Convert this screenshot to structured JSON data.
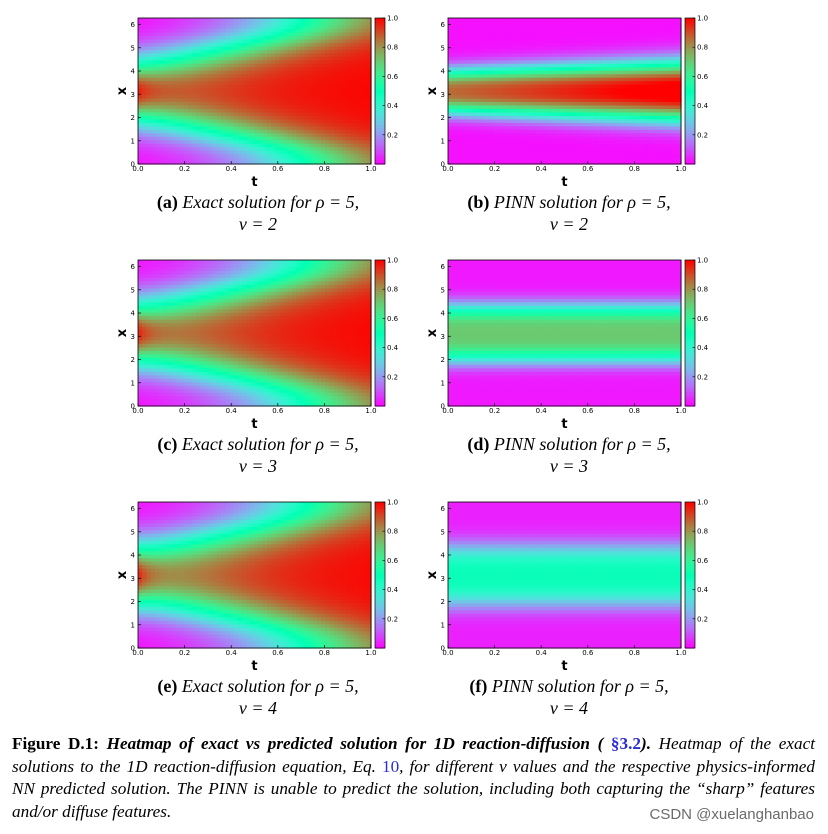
{
  "chart_data": [
    {
      "type": "heatmap",
      "panel_label": "(a)",
      "caption": "Exact solution for ρ = 5, ν = 2",
      "solution": "exact",
      "rho": 5,
      "nu": 2,
      "xlabel": "t",
      "ylabel": "x",
      "xlim": [
        0.0,
        1.0
      ],
      "ylim": [
        0,
        6.28
      ],
      "xticks": [
        "0.0",
        "0.2",
        "0.4",
        "0.6",
        "0.8",
        "1.0"
      ],
      "yticks": [
        "0",
        "1",
        "2",
        "3",
        "4",
        "5",
        "6"
      ],
      "colorbar": {
        "range": [
          0.0,
          1.0
        ],
        "ticks": [
          "0.2",
          "0.4",
          "0.6",
          "0.8",
          "1.0"
        ],
        "colormap": "rainbow"
      }
    },
    {
      "type": "heatmap",
      "panel_label": "(b)",
      "caption": "PINN solution for ρ = 5, ν = 2",
      "solution": "pinn",
      "rho": 5,
      "nu": 2,
      "xlabel": "t",
      "ylabel": "x",
      "xlim": [
        0.0,
        1.0
      ],
      "ylim": [
        0,
        6.28
      ],
      "xticks": [
        "0.0",
        "0.2",
        "0.4",
        "0.6",
        "0.8",
        "1.0"
      ],
      "yticks": [
        "0",
        "1",
        "2",
        "3",
        "4",
        "5",
        "6"
      ],
      "colorbar": {
        "range": [
          0.0,
          1.0
        ],
        "ticks": [
          "0.2",
          "0.4",
          "0.6",
          "0.8",
          "1.0"
        ],
        "colormap": "rainbow"
      }
    },
    {
      "type": "heatmap",
      "panel_label": "(c)",
      "caption": "Exact solution for ρ = 5, ν = 3",
      "solution": "exact",
      "rho": 5,
      "nu": 3,
      "xlabel": "t",
      "ylabel": "x",
      "xlim": [
        0.0,
        1.0
      ],
      "ylim": [
        0,
        6.28
      ],
      "xticks": [
        "0.0",
        "0.2",
        "0.4",
        "0.6",
        "0.8",
        "1.0"
      ],
      "yticks": [
        "0",
        "1",
        "2",
        "3",
        "4",
        "5",
        "6"
      ],
      "colorbar": {
        "range": [
          0.0,
          1.0
        ],
        "ticks": [
          "0.2",
          "0.4",
          "0.6",
          "0.8",
          "1.0"
        ],
        "colormap": "rainbow"
      }
    },
    {
      "type": "heatmap",
      "panel_label": "(d)",
      "caption": "PINN solution for ρ = 5, ν = 3",
      "solution": "pinn",
      "rho": 5,
      "nu": 3,
      "xlabel": "t",
      "ylabel": "x",
      "xlim": [
        0.0,
        1.0
      ],
      "ylim": [
        0,
        6.28
      ],
      "xticks": [
        "0.0",
        "0.2",
        "0.4",
        "0.6",
        "0.8",
        "1.0"
      ],
      "yticks": [
        "0",
        "1",
        "2",
        "3",
        "4",
        "5",
        "6"
      ],
      "colorbar": {
        "range": [
          0.0,
          1.0
        ],
        "ticks": [
          "0.2",
          "0.4",
          "0.6",
          "0.8",
          "1.0"
        ],
        "colormap": "rainbow"
      }
    },
    {
      "type": "heatmap",
      "panel_label": "(e)",
      "caption": "Exact solution for ρ = 5, ν = 4",
      "solution": "exact",
      "rho": 5,
      "nu": 4,
      "xlabel": "t",
      "ylabel": "x",
      "xlim": [
        0.0,
        1.0
      ],
      "ylim": [
        0,
        6.28
      ],
      "xticks": [
        "0.0",
        "0.2",
        "0.4",
        "0.6",
        "0.8",
        "1.0"
      ],
      "yticks": [
        "0",
        "1",
        "2",
        "3",
        "4",
        "5",
        "6"
      ],
      "colorbar": {
        "range": [
          0.0,
          1.0
        ],
        "ticks": [
          "0.2",
          "0.4",
          "0.6",
          "0.8",
          "1.0"
        ],
        "colormap": "rainbow"
      }
    },
    {
      "type": "heatmap",
      "panel_label": "(f)",
      "caption": "PINN solution for ρ = 5, ν = 4",
      "solution": "pinn",
      "rho": 5,
      "nu": 4,
      "xlabel": "t",
      "ylabel": "x",
      "xlim": [
        0.0,
        1.0
      ],
      "ylim": [
        0,
        6.28
      ],
      "xticks": [
        "0.0",
        "0.2",
        "0.4",
        "0.6",
        "0.8",
        "1.0"
      ],
      "yticks": [
        "0",
        "1",
        "2",
        "3",
        "4",
        "5",
        "6"
      ],
      "colorbar": {
        "range": [
          0.0,
          1.0
        ],
        "ticks": [
          "0.2",
          "0.4",
          "0.6",
          "0.8",
          "1.0"
        ],
        "colormap": "rainbow"
      }
    }
  ],
  "captions": [
    {
      "label": "(a)",
      "kind": "Exact solution",
      "line1_math": "for ρ = 5,",
      "line2_math": "ν = 2"
    },
    {
      "label": "(b)",
      "kind": "PINN solution",
      "line1_math": "for ρ = 5,",
      "line2_math": "ν = 2"
    },
    {
      "label": "(c)",
      "kind": "Exact solution",
      "line1_math": "for ρ = 5,",
      "line2_math": "ν = 3"
    },
    {
      "label": "(d)",
      "kind": "PINN solution",
      "line1_math": "for ρ = 5,",
      "line2_math": "ν = 3"
    },
    {
      "label": "(e)",
      "kind": "Exact solution",
      "line1_math": "for ρ = 5,",
      "line2_math": "ν = 4"
    },
    {
      "label": "(f)",
      "kind": "PINN solution",
      "line1_math": "for ρ = 5,",
      "line2_math": "ν = 4"
    }
  ],
  "figure_caption": {
    "label": "Figure D.1:",
    "title": "Heatmap of exact vs predicted solution for 1D reaction-diffusion ( ",
    "section_ref": "§3.2",
    "title_end": ").",
    "body_1": " Heatmap of the exact solutions to the 1D reaction-diffusion equation,  Eq. ",
    "eq_ref": "10",
    "body_2": ", for different ν values and the respective physics-informed NN predicted solution.  The PINN is unable to predict the solution, including both capturing the “sharp” features and/or diffuse features."
  },
  "watermark": "CSDN @xuelanghanbao"
}
